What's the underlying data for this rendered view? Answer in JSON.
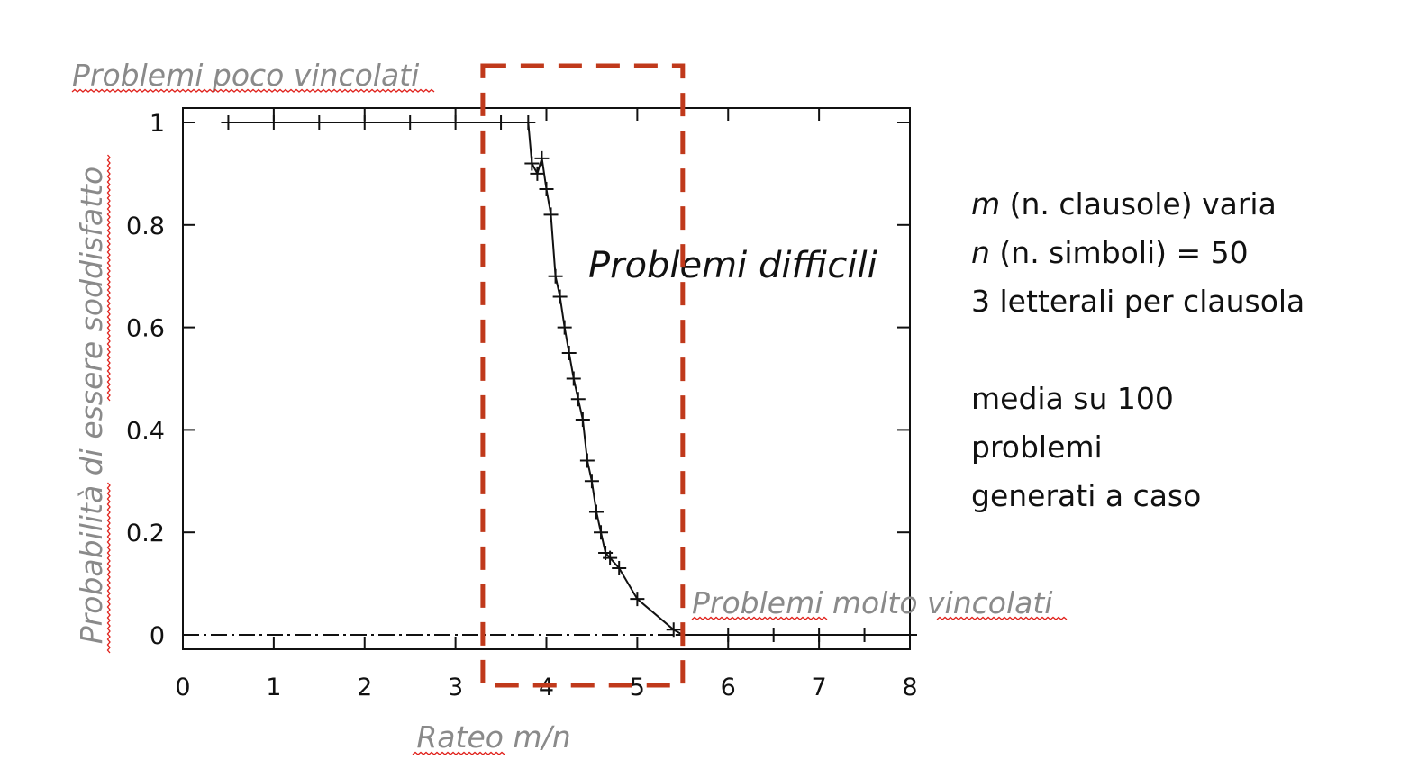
{
  "chart_data": {
    "type": "line",
    "title": "",
    "xlabel": "Rateo m/n",
    "ylabel": "Probabilità di essere soddisfatto",
    "xlim": [
      0,
      8
    ],
    "ylim": [
      0,
      1
    ],
    "x_ticks": [
      "0",
      "1",
      "2",
      "3",
      "4",
      "5",
      "6",
      "7",
      "8"
    ],
    "y_ticks": [
      "0",
      "0.2",
      "0.4",
      "0.6",
      "0.8",
      "1"
    ],
    "grid": false,
    "series": [
      {
        "marker": "plus",
        "x": [
          0.5,
          1.0,
          1.5,
          2.0,
          2.5,
          3.0,
          3.5,
          3.8,
          3.84,
          3.9,
          3.95,
          4.0,
          4.05,
          4.1,
          4.15,
          4.2,
          4.25,
          4.3,
          4.35,
          4.4,
          4.45,
          4.5,
          4.55,
          4.6,
          4.65,
          4.7,
          4.8,
          5.0,
          5.4,
          5.5,
          6.0,
          6.5,
          7.0,
          7.5,
          8.0
        ],
        "y": [
          1.0,
          1.0,
          1.0,
          1.0,
          1.0,
          1.0,
          1.0,
          1.0,
          0.92,
          0.9,
          0.93,
          0.87,
          0.82,
          0.7,
          0.66,
          0.6,
          0.55,
          0.5,
          0.46,
          0.42,
          0.34,
          0.3,
          0.24,
          0.2,
          0.16,
          0.15,
          0.13,
          0.07,
          0.01,
          0.0,
          0.0,
          0.0,
          0.0,
          0.0,
          0.0
        ]
      }
    ],
    "highlight_region": {
      "x_range": [
        3.3,
        5.5
      ],
      "label": "Problemi difficili",
      "color": "#c0391b",
      "style": "dashed"
    },
    "annotations": {
      "top_left": "Problemi poco vincolati",
      "bottom_right": "Problemi molto vincolati"
    }
  },
  "notes": {
    "line1_var": "m",
    "line1_rest": " (n. clausole) varia",
    "line2_var": "n",
    "line2_rest": " (n. simboli) = 50",
    "line3": "3 letterali per clausola",
    "line4": "media su 100",
    "line5": "problemi",
    "line6": "generati a caso"
  },
  "colors": {
    "highlight": "#c0391b",
    "annotation_text": "#8a8a8a",
    "spellcheck_underline": "#e0201a"
  }
}
